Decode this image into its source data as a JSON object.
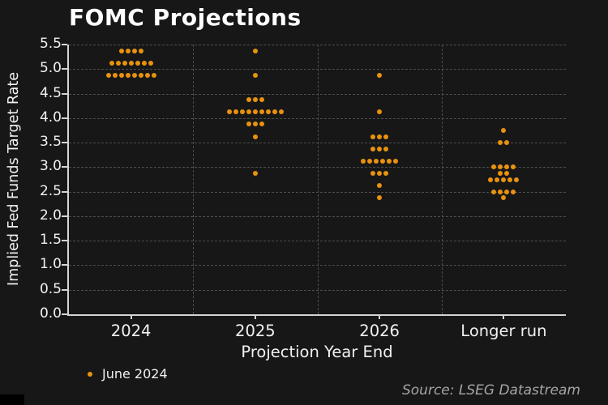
{
  "source": "Source: LSEG Datastream",
  "chart_data": {
    "type": "scatter",
    "title": "FOMC Projections",
    "xlabel": "Projection Year End",
    "ylabel": "Implied Fed Funds Target Rate",
    "categories": [
      "2024",
      "2025",
      "2026",
      "Longer run"
    ],
    "ylim": [
      0,
      5.5
    ],
    "ytick_step": 0.5,
    "grid": "dashed",
    "legend_position": "bottom-left",
    "style": {
      "background": "#171717",
      "dot_color": "#e8920e",
      "grid_color": "#4d4d4d",
      "axis_color": "#d4d4d4",
      "text_color": "#f1f1f1"
    },
    "series": [
      {
        "name": "June 2024",
        "color": "#e8920e",
        "points_by_category": [
          {
            "category": "2024",
            "rows": [
              {
                "rate": 5.375,
                "count": 4
              },
              {
                "rate": 5.125,
                "count": 7
              },
              {
                "rate": 4.875,
                "count": 8
              }
            ]
          },
          {
            "category": "2025",
            "rows": [
              {
                "rate": 5.375,
                "count": 1
              },
              {
                "rate": 4.875,
                "count": 1
              },
              {
                "rate": 4.375,
                "count": 3
              },
              {
                "rate": 4.125,
                "count": 9
              },
              {
                "rate": 3.875,
                "count": 3
              },
              {
                "rate": 3.625,
                "count": 1
              },
              {
                "rate": 2.875,
                "count": 1
              }
            ]
          },
          {
            "category": "2026",
            "rows": [
              {
                "rate": 4.875,
                "count": 1
              },
              {
                "rate": 4.125,
                "count": 1
              },
              {
                "rate": 3.625,
                "count": 3
              },
              {
                "rate": 3.375,
                "count": 3
              },
              {
                "rate": 3.125,
                "count": 6
              },
              {
                "rate": 2.875,
                "count": 3
              },
              {
                "rate": 2.625,
                "count": 1
              },
              {
                "rate": 2.375,
                "count": 1
              }
            ]
          },
          {
            "category": "Longer run",
            "rows": [
              {
                "rate": 3.75,
                "count": 1
              },
              {
                "rate": 3.5,
                "count": 2
              },
              {
                "rate": 3.0,
                "count": 4
              },
              {
                "rate": 2.875,
                "count": 2
              },
              {
                "rate": 2.75,
                "count": 5
              },
              {
                "rate": 2.5,
                "count": 4
              },
              {
                "rate": 2.375,
                "count": 1
              }
            ]
          }
        ]
      }
    ]
  }
}
